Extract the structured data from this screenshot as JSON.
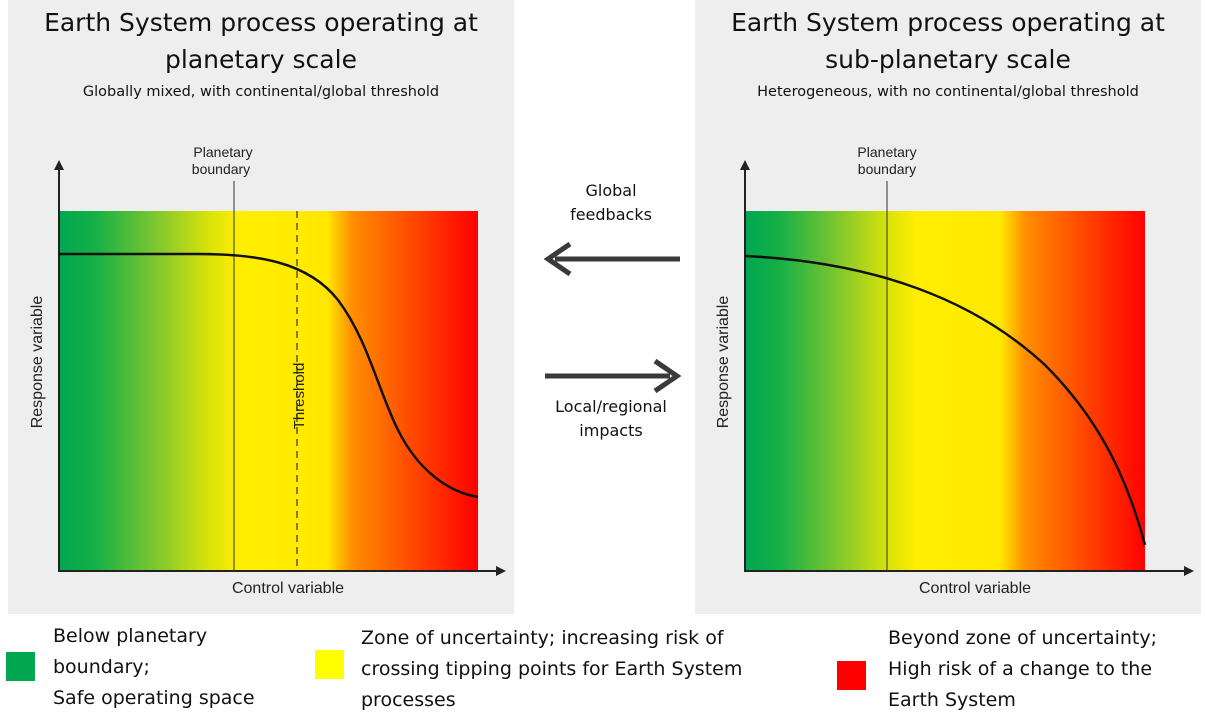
{
  "left_panel": {
    "title_line1": "Earth System process operating at",
    "title_line2": "planetary scale",
    "subtitle": "Globally mixed, with continental/global threshold",
    "boundary_label_line1": "Planetary",
    "boundary_label_line2": "boundary",
    "threshold_label": "Threshold",
    "y_axis_label": "Response variable",
    "x_axis_label": "Control variable"
  },
  "right_panel": {
    "title_line1": "Earth System process operating at",
    "title_line2": "sub-planetary scale",
    "subtitle": "Heterogeneous, with no continental/global threshold",
    "boundary_label_line1": "Planetary",
    "boundary_label_line2": "boundary",
    "y_axis_label": "Response variable",
    "x_axis_label": "Control variable"
  },
  "arrows": {
    "feedback_line1": "Global",
    "feedback_line2": "feedbacks",
    "impact_line1": "Local/regional",
    "impact_line2": "impacts"
  },
  "legend": [
    {
      "color": "#00a650",
      "line1": "Below planetary",
      "line2": "boundary;",
      "line3": "Safe operating space"
    },
    {
      "color": "#ffff00",
      "line1": "Zone of uncertainty; increasing risk of",
      "line2": "crossing tipping points for Earth System",
      "line3": "processes"
    },
    {
      "color": "#ff0000",
      "line1": "Beyond zone of uncertainty;",
      "line2": "High risk of a change to the",
      "line3": "Earth System"
    }
  ],
  "colors": {
    "safe": "#00a650",
    "uncertain": "#ffff00",
    "high_risk": "#ff0000",
    "panel_bg": "#eeeeee",
    "axis": "#222222"
  }
}
